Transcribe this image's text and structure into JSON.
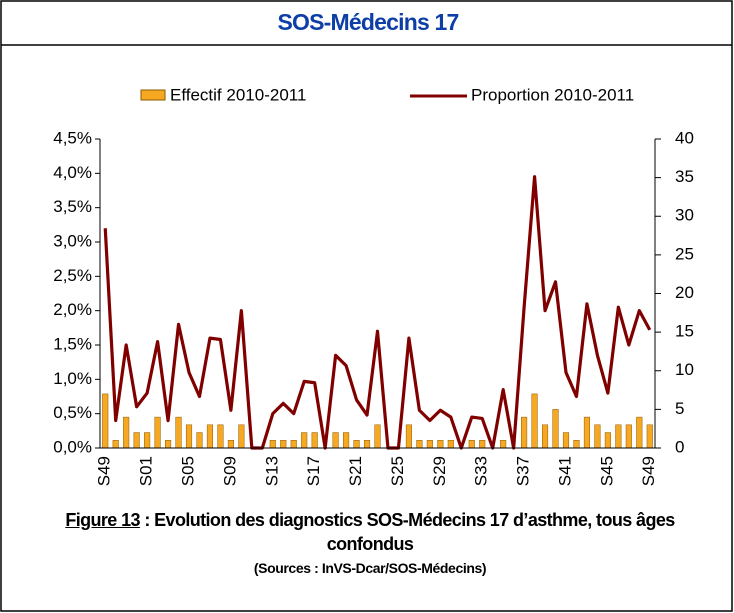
{
  "chart_data": {
    "type": "combo",
    "title": "SOS-Médecins 17",
    "categories": [
      "S49",
      null,
      null,
      null,
      "S01",
      null,
      null,
      null,
      "S05",
      null,
      null,
      null,
      "S09",
      null,
      null,
      null,
      "S13",
      null,
      null,
      null,
      "S17",
      null,
      null,
      null,
      "S21",
      null,
      null,
      null,
      "S25",
      null,
      null,
      null,
      "S29",
      null,
      null,
      null,
      "S33",
      null,
      null,
      null,
      "S37",
      null,
      null,
      null,
      "S41",
      null,
      null,
      null,
      "S45",
      null,
      null,
      null,
      "S49"
    ],
    "series": [
      {
        "name": "Effectif 2010-2011",
        "type": "bar",
        "axis": "y2",
        "color": "#f7a823",
        "values": [
          7,
          1,
          4,
          2,
          2,
          4,
          1,
          4,
          3,
          2,
          3,
          3,
          1,
          3,
          0,
          0,
          1,
          1,
          1,
          2,
          2,
          0,
          2,
          2,
          1,
          1,
          3,
          0,
          0,
          3,
          1,
          1,
          1,
          1,
          0,
          1,
          1,
          0,
          1,
          0,
          4,
          7,
          3,
          5,
          2,
          1,
          4,
          3,
          2,
          3,
          3,
          4,
          3
        ]
      },
      {
        "name": "Proportion 2010-2011",
        "type": "line",
        "color": "#800000",
        "values": [
          3.2,
          0.4,
          1.5,
          0.6,
          0.8,
          1.55,
          0.4,
          1.8,
          1.1,
          0.75,
          1.6,
          1.58,
          0.55,
          2.0,
          0,
          0,
          0.5,
          0.65,
          0.5,
          0.97,
          0.95,
          0,
          1.35,
          1.2,
          0.7,
          0.48,
          1.7,
          0,
          0,
          1.6,
          0.55,
          0.4,
          0.55,
          0.45,
          0,
          0.45,
          0.43,
          0,
          0.85,
          0,
          2.05,
          3.95,
          2.0,
          2.42,
          1.1,
          0.75,
          2.1,
          1.35,
          0.8,
          2.05,
          1.5,
          2.0,
          1.72
        ]
      }
    ],
    "ylim": [
      0,
      4.5
    ],
    "yticks": [
      {
        "value": 0,
        "label": "0,0%"
      },
      {
        "value": 0.5,
        "label": "0,5%"
      },
      {
        "value": 1,
        "label": "1,0%"
      },
      {
        "value": 1.5,
        "label": "1,5%"
      },
      {
        "value": 2,
        "label": "2,0%"
      },
      {
        "value": 2.5,
        "label": "2,5%"
      },
      {
        "value": 3,
        "label": "3,0%"
      },
      {
        "value": 3.5,
        "label": "3,5%"
      },
      {
        "value": 4,
        "label": "4,0%"
      },
      {
        "value": 4.5,
        "label": "4,5%"
      }
    ],
    "y2lim": [
      0,
      40
    ],
    "y2ticks": [
      0,
      5,
      10,
      15,
      20,
      25,
      30,
      35,
      40
    ],
    "grid": false,
    "legend": "top",
    "caption_label": "Figure 13",
    "caption": " : Evolution des diagnostics SOS-Médecins 17 d’asthme, tous âges confondus",
    "source": "(Sources : InVS-Dcar/SOS-Médecins)"
  }
}
